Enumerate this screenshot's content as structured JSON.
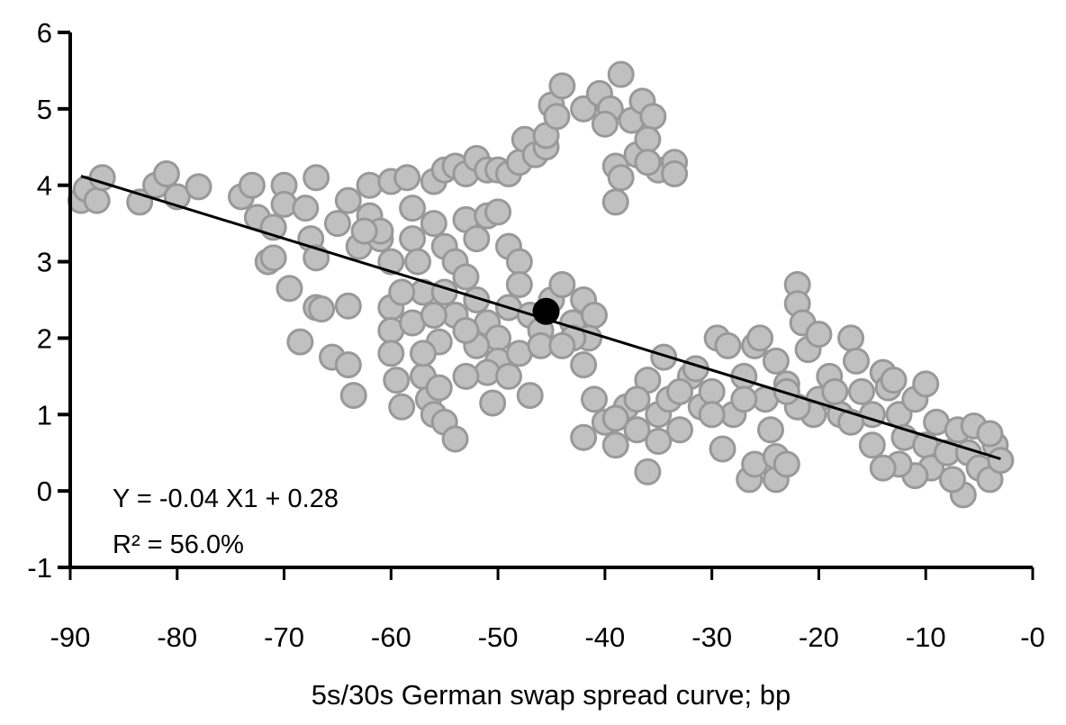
{
  "chart_data": {
    "type": "scatter",
    "title": "",
    "xlabel": "5s/30s German swap spread curve; bp",
    "ylabel": "",
    "xlim": [
      -90,
      0
    ],
    "ylim": [
      -1,
      6
    ],
    "xticks": [
      "-90",
      "-80",
      "-70",
      "-60",
      "-50",
      "-40",
      "-30",
      "-20",
      "-10",
      "-0"
    ],
    "yticks": [
      "-1",
      "0",
      "1",
      "2",
      "3",
      "4",
      "5",
      "6"
    ],
    "grid": false,
    "legend": "none",
    "annotations": [
      "Y = -0.04 X1 + 0.28",
      "R² = 56.0%"
    ],
    "colors": {
      "point_fill": "#c0c0c0",
      "point_stroke": "#999999",
      "trendline": "#000000",
      "highlight": "#000000"
    },
    "trendline": {
      "x": [
        -89,
        -3
      ],
      "y": [
        4.12,
        0.42
      ]
    },
    "highlight_point": [
      -45.5,
      2.35
    ],
    "points": [
      [
        -89,
        3.8
      ],
      [
        -88.5,
        3.95
      ],
      [
        -87.5,
        3.8
      ],
      [
        -87,
        4.1
      ],
      [
        -83.5,
        3.78
      ],
      [
        -82,
        4.0
      ],
      [
        -81,
        4.15
      ],
      [
        -80,
        3.85
      ],
      [
        -78,
        3.98
      ],
      [
        -74,
        3.85
      ],
      [
        -73,
        4.0
      ],
      [
        -72.5,
        3.58
      ],
      [
        -71,
        3.45
      ],
      [
        -70,
        4.0
      ],
      [
        -70,
        3.75
      ],
      [
        -71.5,
        3.0
      ],
      [
        -71,
        3.05
      ],
      [
        -69.5,
        2.65
      ],
      [
        -68,
        3.7
      ],
      [
        -67.5,
        3.3
      ],
      [
        -67,
        4.1
      ],
      [
        -67,
        3.05
      ],
      [
        -67,
        2.4
      ],
      [
        -66.5,
        2.38
      ],
      [
        -68.5,
        1.95
      ],
      [
        -65.5,
        1.75
      ],
      [
        -64,
        2.42
      ],
      [
        -64,
        1.65
      ],
      [
        -63.5,
        1.25
      ],
      [
        -65,
        3.5
      ],
      [
        -64,
        3.8
      ],
      [
        -63,
        3.2
      ],
      [
        -62,
        4.0
      ],
      [
        -62,
        3.6
      ],
      [
        -61,
        3.3
      ],
      [
        -60,
        4.05
      ],
      [
        -60,
        2.4
      ],
      [
        -60,
        2.1
      ],
      [
        -60,
        1.8
      ],
      [
        -59.5,
        1.45
      ],
      [
        -59,
        1.1
      ],
      [
        -58.5,
        4.1
      ],
      [
        -58,
        3.7
      ],
      [
        -58,
        3.3
      ],
      [
        -57.5,
        3.0
      ],
      [
        -57,
        2.6
      ],
      [
        -57,
        1.5
      ],
      [
        -56.5,
        1.2
      ],
      [
        -56,
        1.0
      ],
      [
        -55.5,
        1.35
      ],
      [
        -55,
        0.9
      ],
      [
        -54,
        0.68
      ],
      [
        -56,
        4.05
      ],
      [
        -55,
        4.2
      ],
      [
        -54,
        4.25
      ],
      [
        -53,
        4.15
      ],
      [
        -52,
        4.35
      ],
      [
        -51,
        4.2
      ],
      [
        -50,
        4.2
      ],
      [
        -49,
        4.15
      ],
      [
        -48,
        4.3
      ],
      [
        -47.5,
        4.6
      ],
      [
        -46.5,
        4.4
      ],
      [
        -45.5,
        4.5
      ],
      [
        -45.5,
        4.65
      ],
      [
        -45,
        5.05
      ],
      [
        -44,
        5.3
      ],
      [
        -44.5,
        4.9
      ],
      [
        -42,
        5.0
      ],
      [
        -40.5,
        5.2
      ],
      [
        -39.5,
        5.0
      ],
      [
        -38.5,
        5.45
      ],
      [
        -37.5,
        4.85
      ],
      [
        -36.5,
        5.1
      ],
      [
        -35.5,
        4.9
      ],
      [
        -40,
        4.8
      ],
      [
        -39,
        4.25
      ],
      [
        -38.5,
        4.1
      ],
      [
        -37,
        4.4
      ],
      [
        -36,
        4.6
      ],
      [
        -35,
        4.2
      ],
      [
        -33.5,
        4.3
      ],
      [
        -33.5,
        4.15
      ],
      [
        -39,
        3.78
      ],
      [
        -36,
        4.3
      ],
      [
        -56,
        3.5
      ],
      [
        -55,
        3.2
      ],
      [
        -54,
        3.0
      ],
      [
        -53,
        3.55
      ],
      [
        -52,
        3.3
      ],
      [
        -51,
        3.6
      ],
      [
        -50,
        3.65
      ],
      [
        -49,
        3.2
      ],
      [
        -48,
        3.0
      ],
      [
        -55,
        2.6
      ],
      [
        -54,
        2.3
      ],
      [
        -53,
        2.8
      ],
      [
        -52,
        2.5
      ],
      [
        -51,
        2.2
      ],
      [
        -50,
        2.0
      ],
      [
        -49,
        2.4
      ],
      [
        -48,
        2.7
      ],
      [
        -47,
        2.3
      ],
      [
        -46,
        2.1
      ],
      [
        -45,
        2.5
      ],
      [
        -44,
        2.7
      ],
      [
        -43,
        2.2
      ],
      [
        -42,
        2.5
      ],
      [
        -41,
        2.3
      ],
      [
        -41.5,
        2.0
      ],
      [
        -42,
        1.65
      ],
      [
        -50,
        1.7
      ],
      [
        -51,
        1.55
      ],
      [
        -52,
        1.9
      ],
      [
        -53,
        1.5
      ],
      [
        -50.5,
        1.15
      ],
      [
        -49,
        1.5
      ],
      [
        -48,
        1.8
      ],
      [
        -47,
        1.25
      ],
      [
        -46,
        1.9
      ],
      [
        -53,
        2.1
      ],
      [
        -55.5,
        1.95
      ],
      [
        -57,
        1.8
      ],
      [
        -58,
        2.2
      ],
      [
        -56,
        2.3
      ],
      [
        -59,
        2.6
      ],
      [
        -60,
        3.0
      ],
      [
        -61,
        3.4
      ],
      [
        -62.5,
        3.4
      ],
      [
        -43,
        2.0
      ],
      [
        -44,
        1.9
      ],
      [
        -42,
        0.7
      ],
      [
        -41,
        1.2
      ],
      [
        -40,
        0.9
      ],
      [
        -39,
        0.6
      ],
      [
        -38,
        1.1
      ],
      [
        -37,
        0.8
      ],
      [
        -36,
        0.25
      ],
      [
        -36,
        1.45
      ],
      [
        -35,
        1.0
      ],
      [
        -34.5,
        1.75
      ],
      [
        -34,
        1.2
      ],
      [
        -33,
        0.8
      ],
      [
        -32,
        1.5
      ],
      [
        -31,
        1.1
      ],
      [
        -30,
        1.3
      ],
      [
        -29.5,
        2.0
      ],
      [
        -28.5,
        1.9
      ],
      [
        -28,
        1.0
      ],
      [
        -27,
        1.5
      ],
      [
        -26.5,
        0.15
      ],
      [
        -26,
        0.35
      ],
      [
        -26,
        1.9
      ],
      [
        -25,
        1.2
      ],
      [
        -24.5,
        0.8
      ],
      [
        -24,
        0.15
      ],
      [
        -24,
        0.45
      ],
      [
        -23,
        0.35
      ],
      [
        -25.5,
        2.0
      ],
      [
        -24,
        1.7
      ],
      [
        -23,
        1.4
      ],
      [
        -22,
        2.7
      ],
      [
        -22,
        2.45
      ],
      [
        -21.5,
        2.2
      ],
      [
        -21,
        1.85
      ],
      [
        -20,
        2.05
      ],
      [
        -20,
        1.2
      ],
      [
        -19,
        1.5
      ],
      [
        -18,
        1.0
      ],
      [
        -17,
        2.0
      ],
      [
        -16.5,
        1.7
      ],
      [
        -16,
        1.3
      ],
      [
        -15,
        1.0
      ],
      [
        -14,
        1.55
      ],
      [
        -13.5,
        1.35
      ],
      [
        -13,
        1.45
      ],
      [
        -12.5,
        1.0
      ],
      [
        -12,
        0.7
      ],
      [
        -11,
        1.2
      ],
      [
        -10,
        1.4
      ],
      [
        -10,
        0.6
      ],
      [
        -9.5,
        0.3
      ],
      [
        -9,
        0.9
      ],
      [
        -8,
        0.5
      ],
      [
        -7,
        0.8
      ],
      [
        -6.5,
        -0.05
      ],
      [
        -6,
        0.5
      ],
      [
        -5.5,
        0.85
      ],
      [
        -5,
        0.3
      ],
      [
        -4,
        0.15
      ],
      [
        -3.5,
        0.6
      ],
      [
        -3,
        0.4
      ],
      [
        -4,
        0.75
      ],
      [
        -7.5,
        0.15
      ],
      [
        -11,
        0.2
      ],
      [
        -12.5,
        0.35
      ],
      [
        -14,
        0.3
      ],
      [
        -15,
        0.6
      ],
      [
        -17,
        0.9
      ],
      [
        -18.5,
        1.3
      ],
      [
        -20.5,
        1.0
      ],
      [
        -22,
        1.1
      ],
      [
        -23,
        1.3
      ],
      [
        -27,
        1.2
      ],
      [
        -29,
        0.55
      ],
      [
        -30,
        1.0
      ],
      [
        -31.5,
        1.6
      ],
      [
        -33,
        1.3
      ],
      [
        -35,
        0.65
      ],
      [
        -37,
        1.2
      ],
      [
        -39,
        0.95
      ]
    ]
  }
}
